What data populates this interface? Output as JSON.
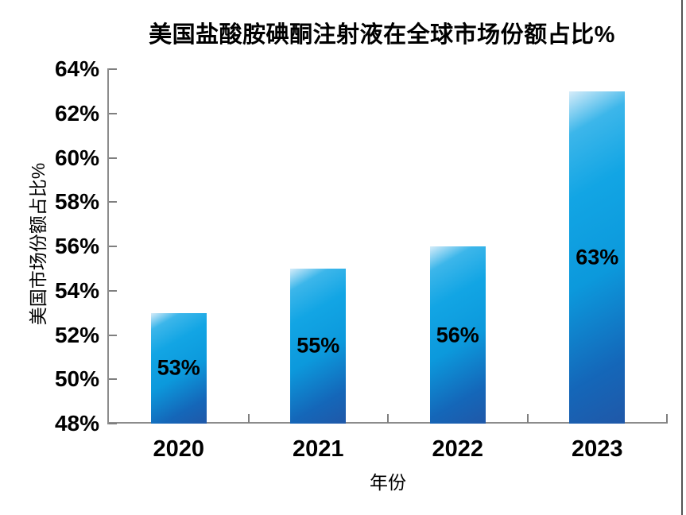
{
  "title": "美国盐酸胺碘酮注射液在全球市场份额占比%",
  "chart_data": {
    "type": "bar",
    "title": "美国盐酸胺碘酮注射液在全球市场份额占比%",
    "categories": [
      "2020",
      "2021",
      "2022",
      "2023"
    ],
    "values": [
      53,
      55,
      56,
      63
    ],
    "value_labels": [
      "53%",
      "55%",
      "56%",
      "63%"
    ],
    "xlabel": "年份",
    "ylabel": "美国市场份额占比%",
    "ylim": [
      48,
      64
    ],
    "ytick_step": 2,
    "ytick_labels_top_to_bottom": [
      "64%",
      "62%",
      "60%",
      "58%",
      "56%",
      "54%",
      "52%",
      "50%",
      "48%"
    ],
    "grid": false,
    "legend": false,
    "colors": {
      "bar_highlight": "#d6ecf9",
      "bar_main": "#0c99dc",
      "bar_shadow": "#2058a8",
      "axis": "#8c8c8c",
      "tick": "#7f7f7f",
      "text": "#000000",
      "right_edge_line": "#555555"
    }
  }
}
